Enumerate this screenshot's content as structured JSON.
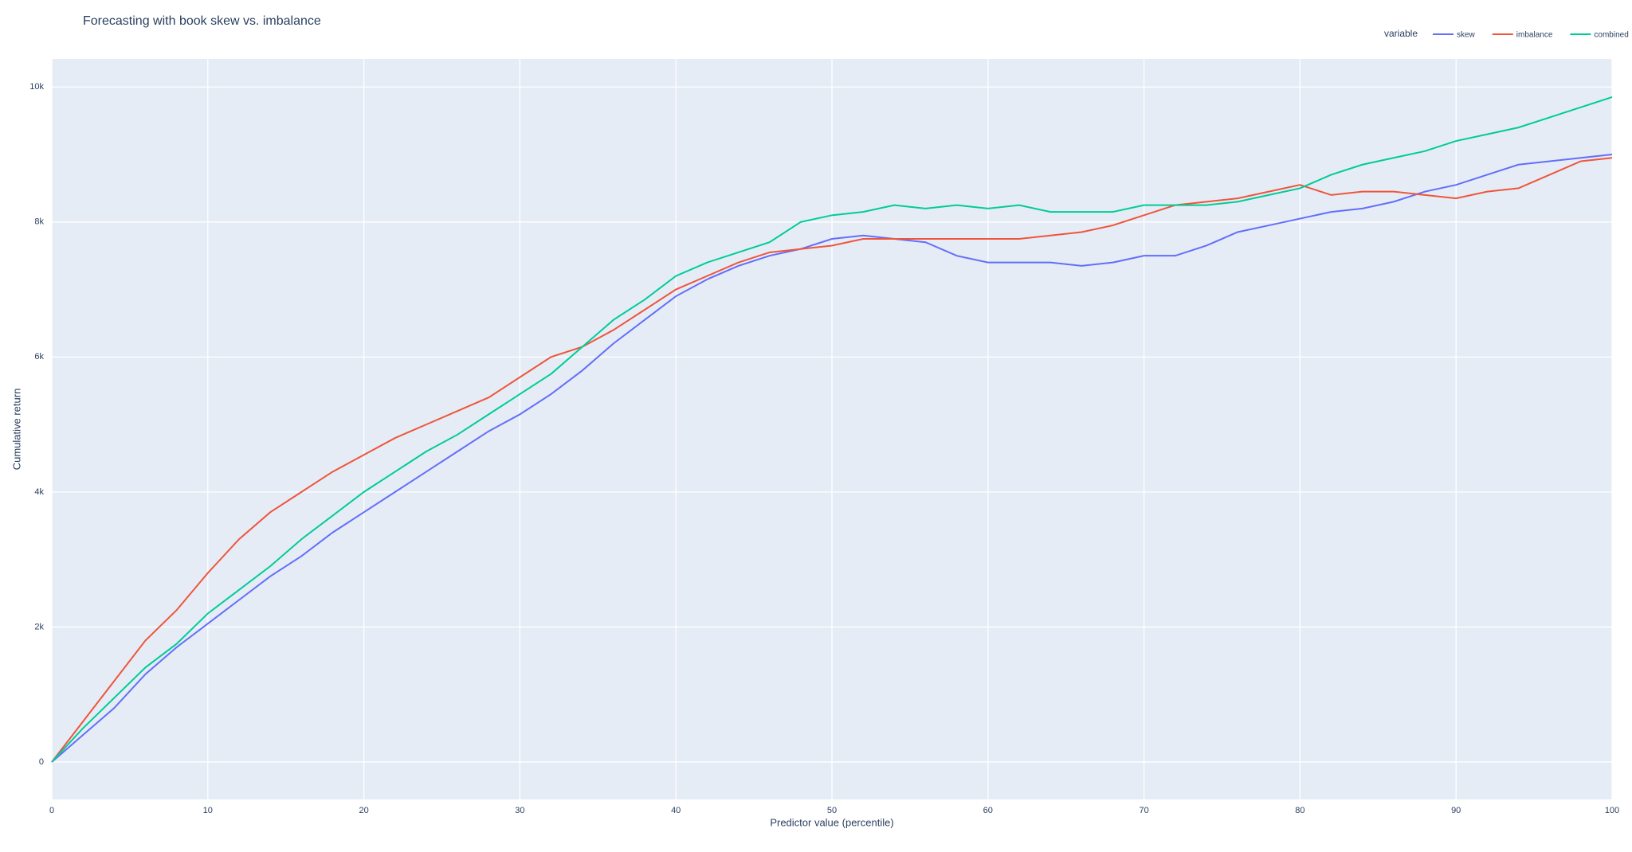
{
  "chart_data": {
    "type": "line",
    "title": "Forecasting with book skew vs. imbalance",
    "x_label": "Predictor value (percentile)",
    "y_label": "Cumulative return",
    "legend_title": "variable",
    "legend_position": "top-right",
    "grid": true,
    "xlim": [
      0,
      100
    ],
    "ylim": [
      -555,
      10416
    ],
    "xticks": [
      0,
      10,
      20,
      30,
      40,
      50,
      60,
      70,
      80,
      90,
      100
    ],
    "yticks": [
      0,
      {
        "value": 2000,
        "label": "2k"
      },
      {
        "value": 4000,
        "label": "4k"
      },
      {
        "value": 6000,
        "label": "6k"
      },
      {
        "value": 8000,
        "label": "8k"
      },
      {
        "value": 10000,
        "label": "10k"
      }
    ],
    "x": [
      0,
      2,
      4,
      6,
      8,
      10,
      12,
      14,
      16,
      18,
      20,
      22,
      24,
      26,
      28,
      30,
      32,
      34,
      36,
      38,
      40,
      42,
      44,
      46,
      48,
      50,
      52,
      54,
      56,
      58,
      60,
      62,
      64,
      66,
      68,
      70,
      72,
      74,
      76,
      78,
      80,
      82,
      84,
      86,
      88,
      90,
      92,
      94,
      96,
      98,
      100
    ],
    "series": [
      {
        "name": "skew",
        "color": "#636efa",
        "values": [
          0,
          400,
          800,
          1300,
          1700,
          2050,
          2400,
          2750,
          3050,
          3400,
          3700,
          4000,
          4300,
          4600,
          4900,
          5150,
          5450,
          5800,
          6200,
          6550,
          6900,
          7150,
          7350,
          7500,
          7600,
          7750,
          7800,
          7750,
          7700,
          7500,
          7400,
          7400,
          7400,
          7350,
          7400,
          7500,
          7500,
          7650,
          7850,
          7950,
          8050,
          8150,
          8200,
          8300,
          8450,
          8550,
          8700,
          8850,
          8900,
          8950,
          9000
        ]
      },
      {
        "name": "imbalance",
        "color": "#ef553b",
        "values": [
          0,
          600,
          1200,
          1800,
          2250,
          2800,
          3300,
          3700,
          4000,
          4300,
          4550,
          4800,
          5000,
          5200,
          5400,
          5700,
          6000,
          6150,
          6400,
          6700,
          7000,
          7200,
          7400,
          7550,
          7600,
          7650,
          7750,
          7750,
          7750,
          7750,
          7750,
          7750,
          7800,
          7850,
          7950,
          8100,
          8250,
          8300,
          8350,
          8450,
          8550,
          8400,
          8450,
          8450,
          8400,
          8350,
          8450,
          8500,
          8700,
          8900,
          8950
        ]
      },
      {
        "name": "combined",
        "color": "#00cc96",
        "values": [
          0,
          500,
          950,
          1400,
          1750,
          2200,
          2550,
          2900,
          3300,
          3650,
          4000,
          4300,
          4600,
          4850,
          5150,
          5450,
          5750,
          6150,
          6550,
          6850,
          7200,
          7400,
          7550,
          7700,
          8000,
          8100,
          8150,
          8250,
          8200,
          8250,
          8200,
          8250,
          8150,
          8150,
          8150,
          8250,
          8250,
          8250,
          8300,
          8400,
          8500,
          8700,
          8850,
          8950,
          9050,
          9200,
          9300,
          9400,
          9550,
          9700,
          9850
        ]
      }
    ]
  }
}
